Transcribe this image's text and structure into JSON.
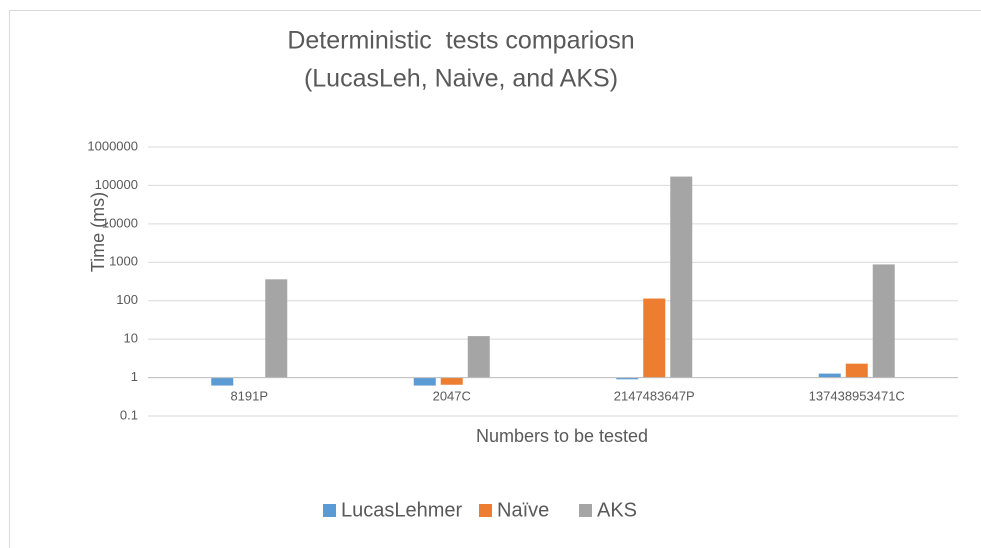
{
  "chart_data": {
    "type": "bar",
    "title": "Deterministic  tests compariosn",
    "subtitle": "(LucasLeh, Naive, and AKS)",
    "x_label": "Numbers to be tested",
    "y_label": "Time (ms)",
    "categories": [
      "8191P",
      "2047C",
      "2147483647P",
      "137438953471C"
    ],
    "series": [
      {
        "name": "LucasLehmer",
        "color": "#5b9bd5",
        "values": [
          0.62,
          0.62,
          0.9,
          1.27
        ]
      },
      {
        "name": "Naïve",
        "color": "#ed7d31",
        "values": [
          1,
          0.65,
          114,
          2.3
        ]
      },
      {
        "name": "AKS",
        "color": "#a5a5a5",
        "values": [
          360,
          12,
          170000,
          880
        ]
      }
    ],
    "ylim": [
      0.1,
      1000000
    ],
    "yticks": [
      0.1,
      1,
      10,
      100,
      1000,
      10000,
      100000,
      1000000
    ],
    "log_y": true,
    "grid": true,
    "legend": "bottom"
  }
}
